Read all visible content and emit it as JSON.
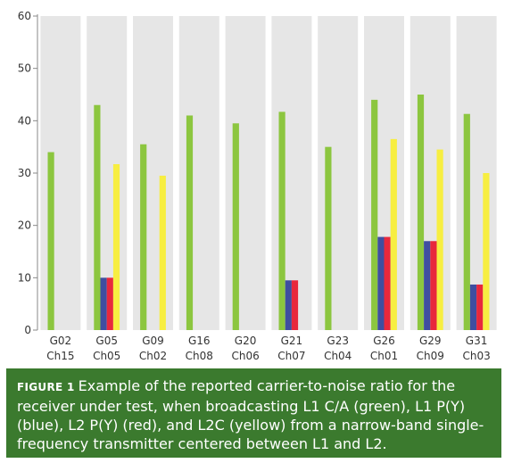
{
  "chart_data": {
    "type": "bar",
    "categories": [
      [
        "G02",
        "Ch15"
      ],
      [
        "G05",
        "Ch05"
      ],
      [
        "G09",
        "Ch02"
      ],
      [
        "G16",
        "Ch08"
      ],
      [
        "G20",
        "Ch06"
      ],
      [
        "G21",
        "Ch07"
      ],
      [
        "G23",
        "Ch04"
      ],
      [
        "G26",
        "Ch01"
      ],
      [
        "G29",
        "Ch09"
      ],
      [
        "G31",
        "Ch03"
      ]
    ],
    "series": [
      {
        "key": "l1ca",
        "color": "#8cc63f",
        "values": [
          34,
          43,
          35.5,
          41,
          39.5,
          41.7,
          35,
          44,
          45,
          41.3
        ]
      },
      {
        "key": "l1py",
        "color": "#3f4ea0",
        "values": [
          0,
          10,
          0,
          0,
          0,
          9.5,
          0,
          17.8,
          17,
          8.7
        ]
      },
      {
        "key": "l2py",
        "color": "#e8283c",
        "values": [
          0,
          10,
          0,
          0,
          0,
          9.5,
          0,
          17.8,
          17,
          8.7
        ]
      },
      {
        "key": "l2c",
        "color": "#f7ee41",
        "values": [
          0,
          31.7,
          29.5,
          0,
          0,
          0,
          0,
          36.5,
          34.5,
          30
        ]
      }
    ],
    "yticks": [
      "0",
      "10",
      "20",
      "30",
      "40",
      "50",
      "60"
    ],
    "ylim": [
      0,
      60
    ],
    "grid": false,
    "column_background": "#e6e6e6",
    "title": "",
    "xlabel": "",
    "ylabel": ""
  },
  "caption": {
    "label": "FIGURE 1",
    "text": "Example of the reported carrier-to-noise ratio for the receiver under test, when broadcasting L1 C/A (green), L1 P(Y) (blue), L2 P(Y) (red), and L2C (yellow) from a narrow-band single-frequency transmitter centered between L1 and L2."
  }
}
